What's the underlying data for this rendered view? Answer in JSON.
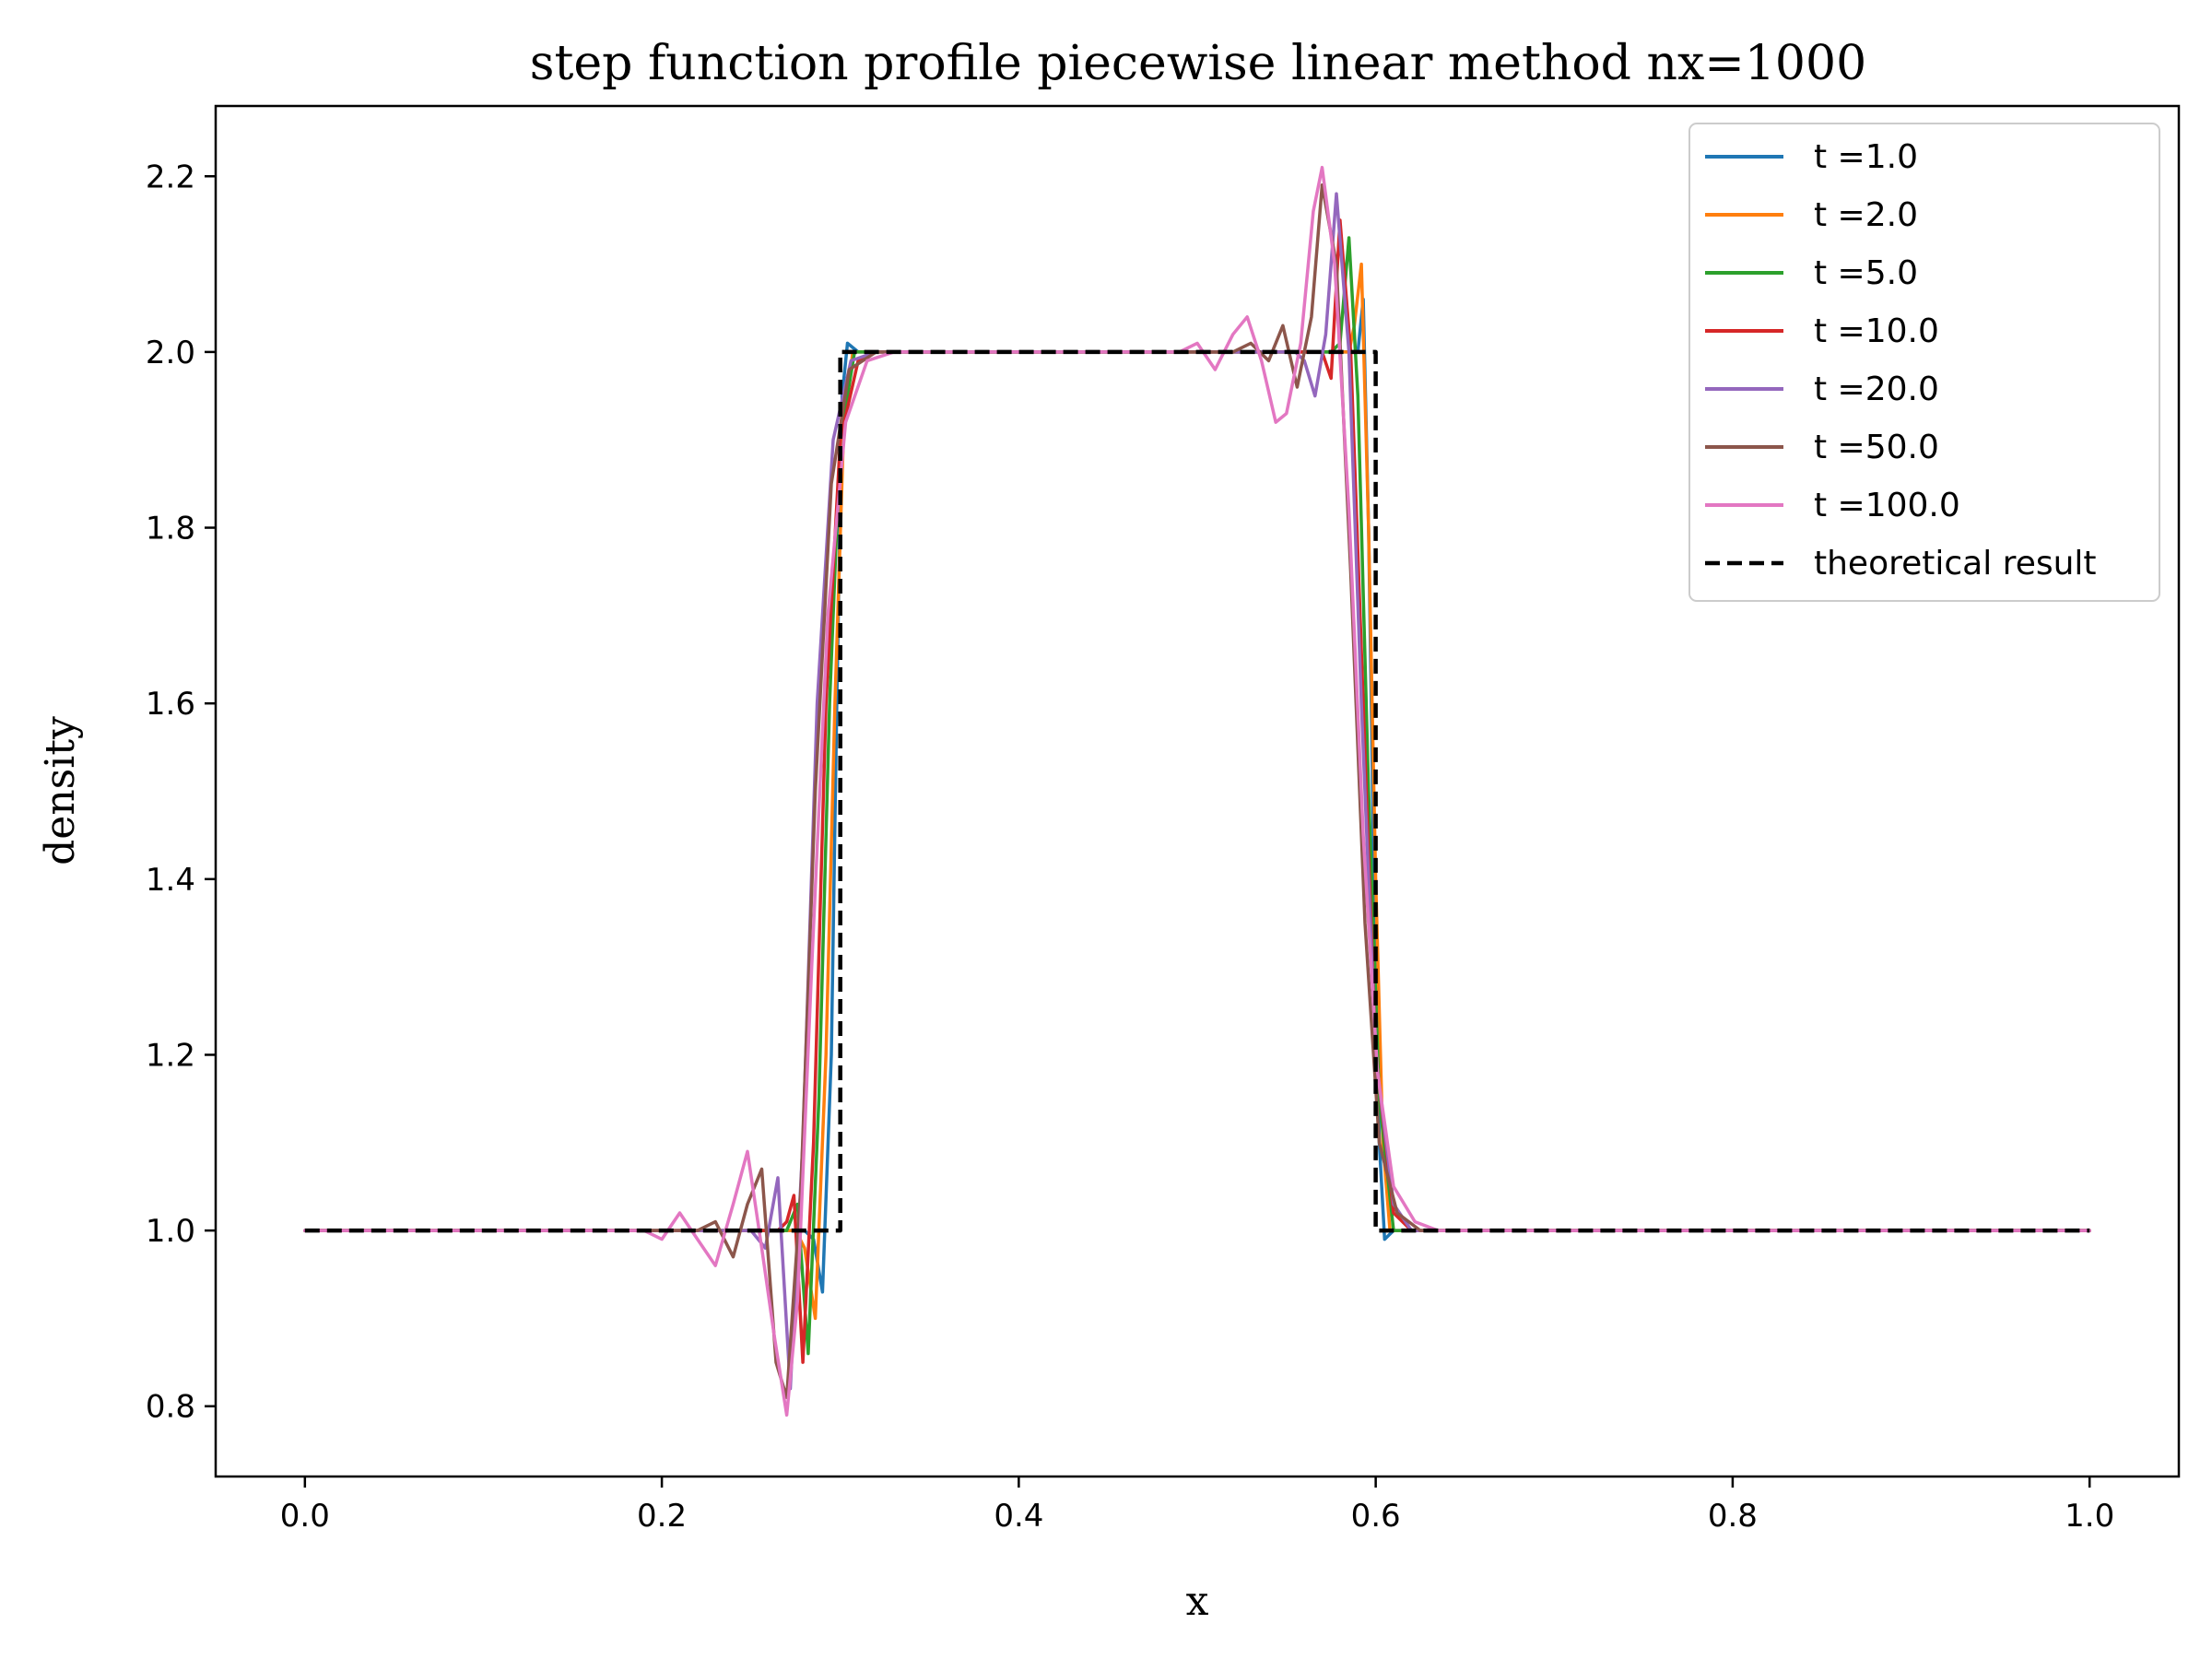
{
  "chart_data": {
    "type": "line",
    "title": "step function profile piecewise linear method nx=1000",
    "xlabel": "x",
    "ylabel": "density",
    "xlim": [
      -0.05,
      1.05
    ],
    "ylim": [
      0.72,
      2.28
    ],
    "xticks": [
      0.0,
      0.2,
      0.4,
      0.6,
      0.8,
      1.0
    ],
    "xtick_labels": [
      "0.0",
      "0.2",
      "0.4",
      "0.6",
      "0.8",
      "1.0"
    ],
    "yticks": [
      0.8,
      1.0,
      1.2,
      1.4,
      1.6,
      1.8,
      2.0,
      2.2
    ],
    "ytick_labels": [
      "0.8",
      "1.0",
      "1.2",
      "1.4",
      "1.6",
      "1.8",
      "2.0",
      "2.2"
    ],
    "grid": false,
    "legend_position": "top-right",
    "series": [
      {
        "name": "t =1.0",
        "color": "#1f77b4",
        "style": "solid",
        "points": [
          [
            0.0,
            1.0
          ],
          [
            0.28,
            1.0
          ],
          [
            0.285,
            0.99
          ],
          [
            0.29,
            0.93
          ],
          [
            0.295,
            1.2
          ],
          [
            0.298,
            1.6
          ],
          [
            0.301,
            1.95
          ],
          [
            0.304,
            2.01
          ],
          [
            0.31,
            2.0
          ],
          [
            0.59,
            2.0
          ],
          [
            0.593,
            2.06
          ],
          [
            0.596,
            1.8
          ],
          [
            0.599,
            1.4
          ],
          [
            0.602,
            1.1
          ],
          [
            0.605,
            0.99
          ],
          [
            0.61,
            1.0
          ],
          [
            1.0,
            1.0
          ]
        ]
      },
      {
        "name": "t =2.0",
        "color": "#ff7f0e",
        "style": "solid",
        "points": [
          [
            0.0,
            1.0
          ],
          [
            0.275,
            1.0
          ],
          [
            0.28,
            0.98
          ],
          [
            0.286,
            0.9
          ],
          [
            0.292,
            1.2
          ],
          [
            0.297,
            1.6
          ],
          [
            0.302,
            1.92
          ],
          [
            0.307,
            2.0
          ],
          [
            0.312,
            2.0
          ],
          [
            0.585,
            2.0
          ],
          [
            0.588,
            2.03
          ],
          [
            0.592,
            2.1
          ],
          [
            0.596,
            1.8
          ],
          [
            0.6,
            1.4
          ],
          [
            0.604,
            1.1
          ],
          [
            0.608,
            1.0
          ],
          [
            1.0,
            1.0
          ]
        ]
      },
      {
        "name": "t =5.0",
        "color": "#2ca02c",
        "style": "solid",
        "points": [
          [
            0.0,
            1.0
          ],
          [
            0.27,
            1.0
          ],
          [
            0.276,
            1.03
          ],
          [
            0.282,
            0.86
          ],
          [
            0.288,
            1.15
          ],
          [
            0.294,
            1.6
          ],
          [
            0.3,
            1.9
          ],
          [
            0.308,
            2.0
          ],
          [
            0.315,
            2.0
          ],
          [
            0.575,
            2.0
          ],
          [
            0.58,
            2.01
          ],
          [
            0.585,
            2.13
          ],
          [
            0.59,
            1.95
          ],
          [
            0.596,
            1.5
          ],
          [
            0.602,
            1.15
          ],
          [
            0.61,
            1.0
          ],
          [
            1.0,
            1.0
          ]
        ]
      },
      {
        "name": "t =10.0",
        "color": "#d62728",
        "style": "solid",
        "points": [
          [
            0.0,
            1.0
          ],
          [
            0.265,
            1.0
          ],
          [
            0.27,
            1.01
          ],
          [
            0.274,
            1.04
          ],
          [
            0.279,
            0.85
          ],
          [
            0.285,
            1.1
          ],
          [
            0.292,
            1.6
          ],
          [
            0.3,
            1.9
          ],
          [
            0.31,
            1.99
          ],
          [
            0.32,
            2.0
          ],
          [
            0.565,
            2.0
          ],
          [
            0.57,
            2.0
          ],
          [
            0.575,
            1.97
          ],
          [
            0.58,
            2.15
          ],
          [
            0.586,
            2.0
          ],
          [
            0.593,
            1.6
          ],
          [
            0.6,
            1.2
          ],
          [
            0.61,
            1.02
          ],
          [
            0.62,
            1.0
          ],
          [
            1.0,
            1.0
          ]
        ]
      },
      {
        "name": "t =20.0",
        "color": "#9467bd",
        "style": "solid",
        "points": [
          [
            0.0,
            1.0
          ],
          [
            0.25,
            1.0
          ],
          [
            0.258,
            0.98
          ],
          [
            0.265,
            1.06
          ],
          [
            0.272,
            0.82
          ],
          [
            0.279,
            1.1
          ],
          [
            0.287,
            1.6
          ],
          [
            0.296,
            1.9
          ],
          [
            0.306,
            1.99
          ],
          [
            0.32,
            2.0
          ],
          [
            0.555,
            2.0
          ],
          [
            0.56,
            1.99
          ],
          [
            0.566,
            1.95
          ],
          [
            0.572,
            2.02
          ],
          [
            0.578,
            2.18
          ],
          [
            0.585,
            2.0
          ],
          [
            0.592,
            1.6
          ],
          [
            0.6,
            1.2
          ],
          [
            0.61,
            1.03
          ],
          [
            0.62,
            1.0
          ],
          [
            1.0,
            1.0
          ]
        ]
      },
      {
        "name": "t =50.0",
        "color": "#8c564b",
        "style": "solid",
        "points": [
          [
            0.0,
            1.0
          ],
          [
            0.22,
            1.0
          ],
          [
            0.23,
            1.01
          ],
          [
            0.24,
            0.97
          ],
          [
            0.248,
            1.03
          ],
          [
            0.256,
            1.07
          ],
          [
            0.264,
            0.85
          ],
          [
            0.27,
            0.81
          ],
          [
            0.278,
            1.05
          ],
          [
            0.286,
            1.5
          ],
          [
            0.295,
            1.85
          ],
          [
            0.305,
            1.98
          ],
          [
            0.32,
            2.0
          ],
          [
            0.52,
            2.0
          ],
          [
            0.53,
            2.01
          ],
          [
            0.54,
            1.99
          ],
          [
            0.548,
            2.03
          ],
          [
            0.556,
            1.96
          ],
          [
            0.564,
            2.04
          ],
          [
            0.57,
            2.19
          ],
          [
            0.578,
            2.1
          ],
          [
            0.586,
            1.75
          ],
          [
            0.594,
            1.35
          ],
          [
            0.602,
            1.1
          ],
          [
            0.612,
            1.02
          ],
          [
            0.625,
            1.0
          ],
          [
            1.0,
            1.0
          ]
        ]
      },
      {
        "name": "t =100.0",
        "color": "#e377c2",
        "style": "solid",
        "points": [
          [
            0.0,
            1.0
          ],
          [
            0.18,
            1.0
          ],
          [
            0.19,
            1.0
          ],
          [
            0.2,
            0.99
          ],
          [
            0.21,
            1.02
          ],
          [
            0.22,
            0.99
          ],
          [
            0.23,
            0.96
          ],
          [
            0.24,
            1.03
          ],
          [
            0.248,
            1.09
          ],
          [
            0.256,
            0.98
          ],
          [
            0.263,
            0.88
          ],
          [
            0.27,
            0.79
          ],
          [
            0.276,
            0.92
          ],
          [
            0.284,
            1.3
          ],
          [
            0.293,
            1.7
          ],
          [
            0.303,
            1.92
          ],
          [
            0.315,
            1.99
          ],
          [
            0.33,
            2.0
          ],
          [
            0.49,
            2.0
          ],
          [
            0.5,
            2.01
          ],
          [
            0.51,
            1.98
          ],
          [
            0.52,
            2.02
          ],
          [
            0.528,
            2.04
          ],
          [
            0.536,
            1.99
          ],
          [
            0.544,
            1.92
          ],
          [
            0.55,
            1.93
          ],
          [
            0.558,
            2.01
          ],
          [
            0.565,
            2.16
          ],
          [
            0.57,
            2.21
          ],
          [
            0.577,
            2.1
          ],
          [
            0.585,
            1.82
          ],
          [
            0.593,
            1.45
          ],
          [
            0.601,
            1.18
          ],
          [
            0.61,
            1.05
          ],
          [
            0.622,
            1.01
          ],
          [
            0.635,
            1.0
          ],
          [
            1.0,
            1.0
          ]
        ]
      },
      {
        "name": "theoretical result",
        "color": "#000000",
        "style": "dashed",
        "points": [
          [
            0.0,
            1.0
          ],
          [
            0.3,
            1.0
          ],
          [
            0.3,
            2.0
          ],
          [
            0.6,
            2.0
          ],
          [
            0.6,
            1.0
          ],
          [
            1.0,
            1.0
          ]
        ]
      }
    ]
  }
}
